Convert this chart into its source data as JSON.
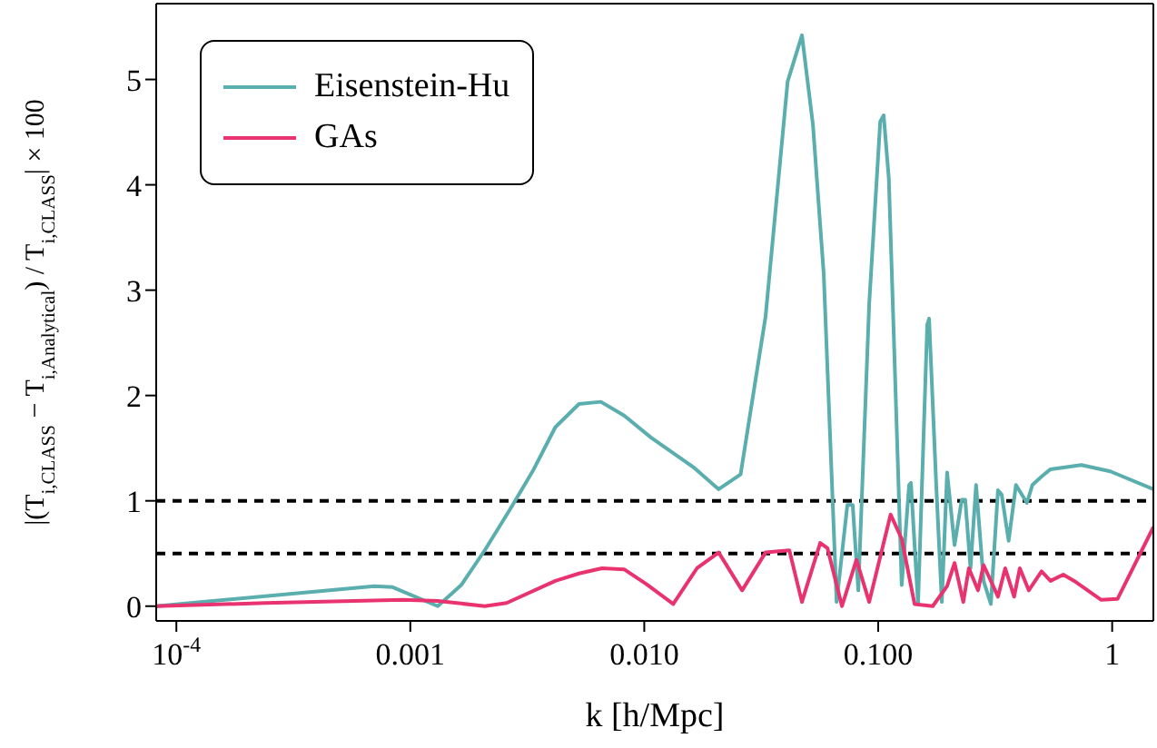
{
  "chart_data": {
    "type": "line",
    "xlabel": "k [h/Mpc]",
    "ylabel": "|(T$_{i,CLASS}$ − T$_{i,Analytical}$) / T$_{i,CLASS}$| × 100",
    "log": "x",
    "grid": false,
    "legend": "top left",
    "marker": "none",
    "line_style": "solid",
    "xlim": [
      8.2e-05,
      1.5
    ],
    "ylim": [
      -0.14,
      5.72
    ],
    "xticks": [
      {
        "value": 0.0001,
        "label": "10$^{-4}$"
      },
      {
        "value": 0.001,
        "label": "0.001"
      },
      {
        "value": 0.01,
        "label": "0.010"
      },
      {
        "value": 0.1,
        "label": "0.100"
      },
      {
        "value": 1,
        "label": "1"
      }
    ],
    "yticks": [
      0,
      1,
      2,
      3,
      4,
      5
    ],
    "ref_lines": [
      {
        "axis": "y",
        "value": 1,
        "color": "#000000",
        "line_style": "dashed"
      },
      {
        "axis": "y",
        "value": 0.5,
        "color": "#000000",
        "line_style": "dashed"
      }
    ],
    "series": [
      {
        "name": "Eisenstein-Hu",
        "color": "#5aaead",
        "x": [
          8.2e-05,
          0.0007,
          0.00084,
          0.00131,
          0.00165,
          0.00208,
          0.00267,
          0.00337,
          0.00417,
          0.00526,
          0.00652,
          0.0082,
          0.0107,
          0.0162,
          0.0208,
          0.0258,
          0.033,
          0.041,
          0.0472,
          0.0526,
          0.0585,
          0.0664,
          0.0738,
          0.0778,
          0.0822,
          0.0915,
          0.102,
          0.1055,
          0.111,
          0.126,
          0.1355,
          0.138,
          0.148,
          0.162,
          0.165,
          0.177,
          0.187,
          0.197,
          0.212,
          0.2275,
          0.2355,
          0.248,
          0.262,
          0.282,
          0.303,
          0.325,
          0.337,
          0.361,
          0.388,
          0.432,
          0.456,
          0.499,
          0.545,
          0.738,
          0.982,
          1.5
        ],
        "values": [
          0,
          0.19,
          0.18,
          0.0,
          0.2,
          0.53,
          0.92,
          1.3,
          1.7,
          1.92,
          1.94,
          1.81,
          1.6,
          1.32,
          1.11,
          1.25,
          2.75,
          4.98,
          5.42,
          4.57,
          3.15,
          0.04,
          0.96,
          0.96,
          0.15,
          2.87,
          4.6,
          4.66,
          4.06,
          0.2,
          1.15,
          1.17,
          0.02,
          2.67,
          2.73,
          1.15,
          0.04,
          1.27,
          0.58,
          1.01,
          1.01,
          0.36,
          1.15,
          0.24,
          0.02,
          1.1,
          1.06,
          0.62,
          1.15,
          0.98,
          1.15,
          1.23,
          1.3,
          1.34,
          1.28,
          1.11
        ]
      },
      {
        "name": "GAs",
        "color": "#e8336f",
        "x": [
          8.2e-05,
          0.00024,
          0.00093,
          0.00131,
          0.00208,
          0.00258,
          0.00417,
          0.00526,
          0.0066,
          0.0082,
          0.0102,
          0.0133,
          0.0168,
          0.0208,
          0.0262,
          0.033,
          0.0417,
          0.0472,
          0.0565,
          0.0607,
          0.07,
          0.0807,
          0.0915,
          0.113,
          0.126,
          0.143,
          0.171,
          0.197,
          0.212,
          0.231,
          0.244,
          0.267,
          0.282,
          0.303,
          0.325,
          0.349,
          0.381,
          0.403,
          0.44,
          0.499,
          0.545,
          0.618,
          0.688,
          0.898,
          1.055,
          1.5
        ],
        "values": [
          0,
          0.03,
          0.06,
          0.05,
          0,
          0.03,
          0.24,
          0.31,
          0.36,
          0.35,
          0.21,
          0.02,
          0.36,
          0.51,
          0.15,
          0.51,
          0.53,
          0.04,
          0.6,
          0.55,
          0,
          0.44,
          0.04,
          0.87,
          0.64,
          0.02,
          0,
          0.19,
          0.41,
          0.04,
          0.36,
          0.15,
          0.39,
          0.24,
          0.09,
          0.36,
          0.09,
          0.36,
          0.15,
          0.33,
          0.24,
          0.3,
          0.24,
          0.06,
          0.07,
          0.75
        ]
      }
    ]
  }
}
